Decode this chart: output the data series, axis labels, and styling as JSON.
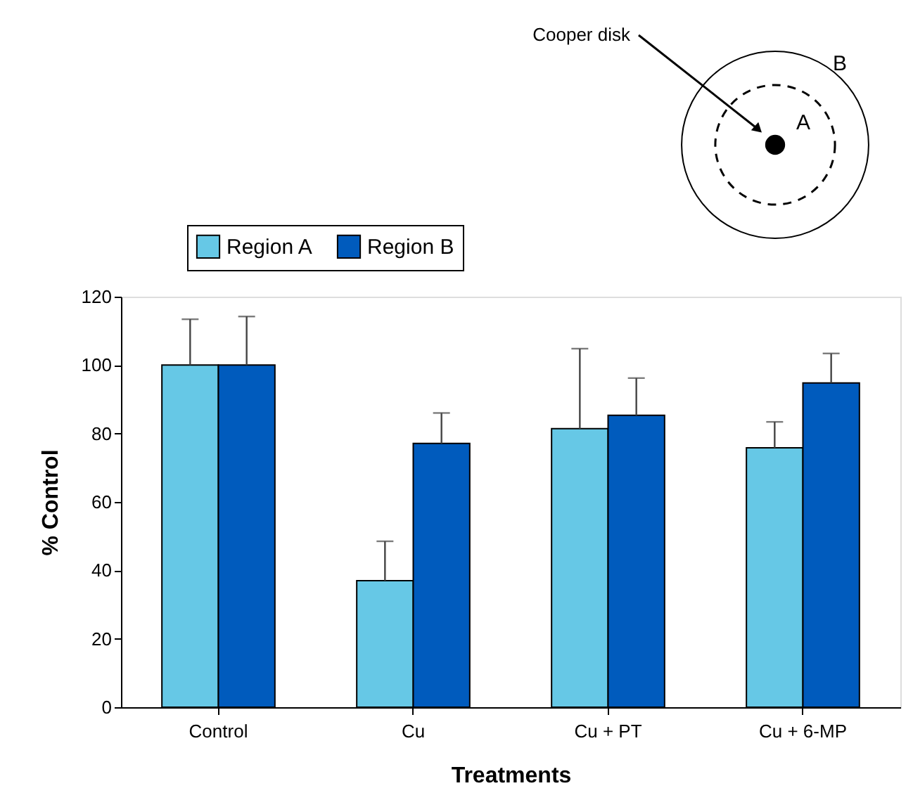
{
  "chart_data": {
    "type": "bar",
    "xlabel": "Treatments",
    "ylabel": "% Control",
    "categories": [
      "Control",
      "Cu",
      "Cu + PT",
      "Cu + 6-MP"
    ],
    "series": [
      {
        "name": "Region A",
        "color": "#66c8e6",
        "values": [
          100,
          37,
          81.4,
          75.8
        ],
        "errors": [
          [
            100,
            113.4
          ],
          [
            37,
            48.5
          ],
          [
            81.4,
            104.8
          ],
          [
            75.8,
            83.4
          ]
        ]
      },
      {
        "name": "Region B",
        "color": "#005bbd",
        "values": [
          100,
          77.1,
          85.3,
          94.8
        ],
        "errors": [
          [
            100,
            114.2
          ],
          [
            77.1,
            86
          ],
          [
            85.3,
            96.2
          ],
          [
            94.8,
            103.4
          ]
        ]
      }
    ],
    "ylim": [
      0,
      120
    ],
    "yticks": [
      0,
      20,
      40,
      60,
      80,
      100,
      120
    ],
    "legend": "top left",
    "annotations": [
      "Cooper disk",
      "A",
      "B"
    ]
  }
}
